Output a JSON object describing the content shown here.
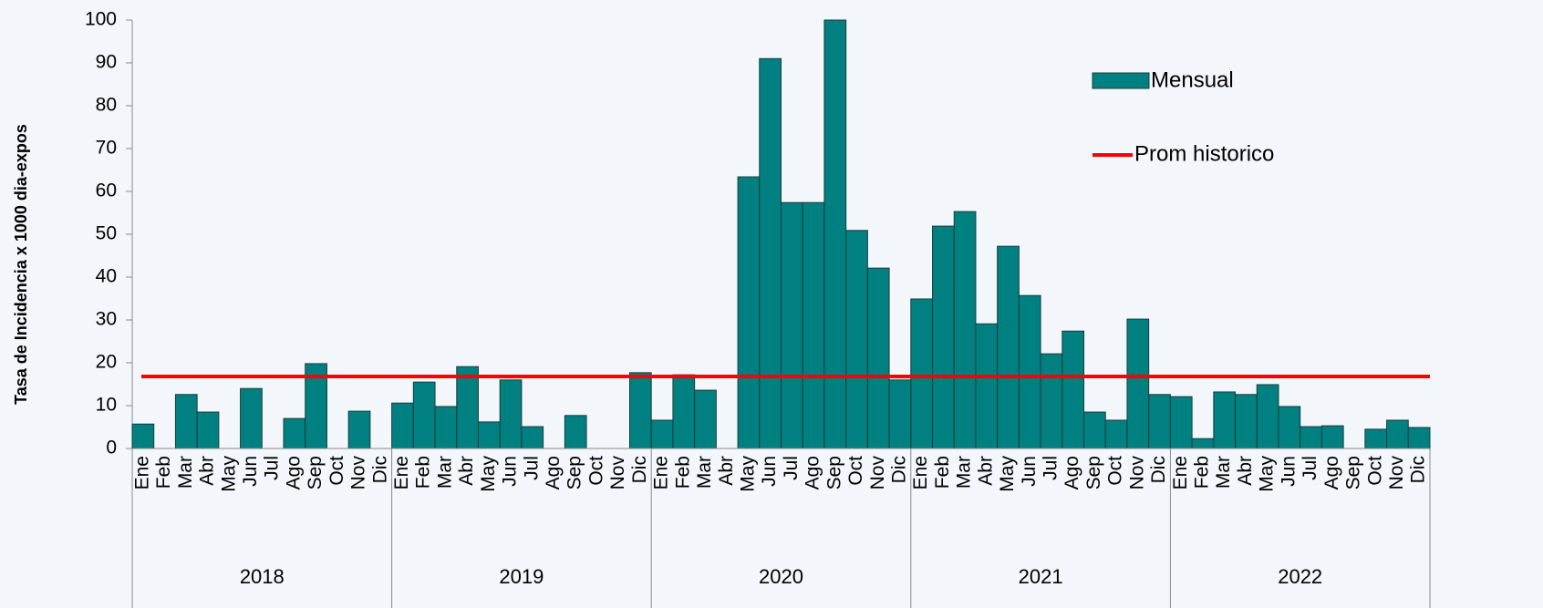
{
  "chart_data": {
    "type": "bar",
    "y_label": "Tasa de Incidencia x 1000 dia-expos",
    "categories": [
      "Ene",
      "Feb",
      "Mar",
      "Abr",
      "May",
      "Jun",
      "Jul",
      "Ago",
      "Sep",
      "Oct",
      "Nov",
      "Dic",
      "Ene",
      "Feb",
      "Mar",
      "Abr",
      "May",
      "Jun",
      "Jul",
      "Ago",
      "Sep",
      "Oct",
      "Nov",
      "Dic",
      "Ene",
      "Feb",
      "Mar",
      "Abr",
      "May",
      "Jun",
      "Jul",
      "Ago",
      "Sep",
      "Oct",
      "Nov",
      "Dic",
      "Ene",
      "Feb",
      "Mar",
      "Abr",
      "May",
      "Jun",
      "Jul",
      "Ago",
      "Sep",
      "Oct",
      "Nov",
      "Dic",
      "Ene",
      "Feb",
      "Mar",
      "Abr",
      "May",
      "Jun",
      "Jul",
      "Ago",
      "Sep",
      "Oct",
      "Nov",
      "Dic"
    ],
    "groups": [
      "2018",
      "2019",
      "2020",
      "2021",
      "2022"
    ],
    "series": [
      {
        "name": "Mensual",
        "color": "#008080",
        "values": [
          5.7,
          0,
          12.6,
          8.5,
          0,
          14,
          0,
          7,
          19.8,
          0,
          8.7,
          0,
          10.6,
          15.5,
          9.8,
          19.1,
          6.2,
          16,
          5.1,
          0,
          7.7,
          0,
          0,
          17.7,
          6.6,
          17.2,
          13.6,
          0,
          63.4,
          91,
          57.4,
          57.4,
          100,
          50.9,
          42.1,
          16,
          34.9,
          51.9,
          55.3,
          29.1,
          47.2,
          35.7,
          22.1,
          27.4,
          8.5,
          6.6,
          30.2,
          12.6,
          12.1,
          2.3,
          13.2,
          12.6,
          14.9,
          9.8,
          5.1,
          5.3,
          0,
          4.5,
          6.6,
          4.9
        ]
      },
      {
        "name": "Prom historico",
        "color": "#ff0000",
        "value": 16.8
      }
    ],
    "ylim": [
      0,
      100
    ],
    "yticks": [
      0,
      10,
      20,
      30,
      40,
      50,
      60,
      70,
      80,
      90,
      100
    ],
    "grid": false
  }
}
